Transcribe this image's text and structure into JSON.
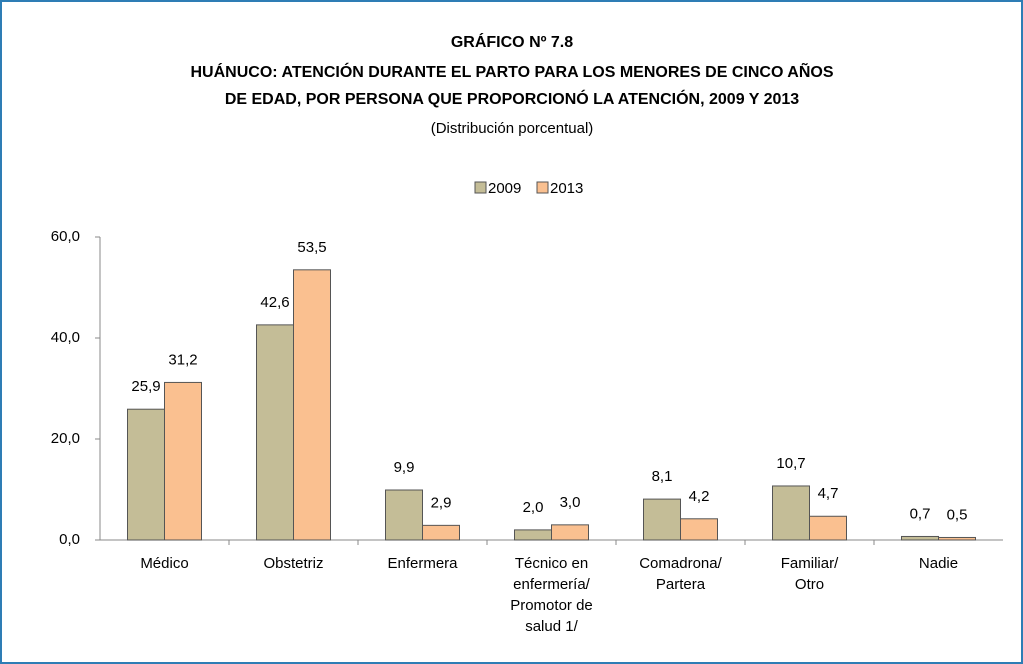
{
  "chart_data": {
    "type": "bar",
    "title": "GRÁFICO Nº 7.8",
    "subtitle_lines": [
      "HUÁNUCO: ATENCIÓN DURANTE EL PARTO PARA LOS MENORES DE CINCO AÑOS",
      "DE EDAD, POR PERSONA  QUE PROPORCIONÓ LA ATENCIÓN, 2009 Y 2013"
    ],
    "note": "(Distribución porcentual)",
    "categories": [
      "Médico",
      "Obstetriz",
      "Enfermera",
      "Técnico en\nenfermería/\nPromotor de\nsalud 1/",
      "Comadrona/\nPartera",
      "Familiar/\nOtro",
      "Nadie"
    ],
    "series": [
      {
        "name": "2009",
        "color": "#c4bd97",
        "values": [
          25.9,
          42.6,
          9.9,
          2.0,
          8.1,
          10.7,
          0.7
        ],
        "value_labels": [
          "25,9",
          "42,6",
          "9,9",
          "2,0",
          "8,1",
          "10,7",
          "0,7"
        ]
      },
      {
        "name": "2013",
        "color": "#fac090",
        "values": [
          31.2,
          53.5,
          2.9,
          3.0,
          4.2,
          4.7,
          0.5
        ],
        "value_labels": [
          "31,2",
          "53,5",
          "2,9",
          "3,0",
          "4,2",
          "4,7",
          "0,5"
        ]
      }
    ],
    "ylim": [
      0,
      60
    ],
    "yticks": [
      {
        "value": 0,
        "label": "0,0"
      },
      {
        "value": 20,
        "label": "20,0"
      },
      {
        "value": 40,
        "label": "40,0"
      },
      {
        "value": 60,
        "label": "60,0"
      }
    ],
    "legend": "top",
    "grid": false
  }
}
